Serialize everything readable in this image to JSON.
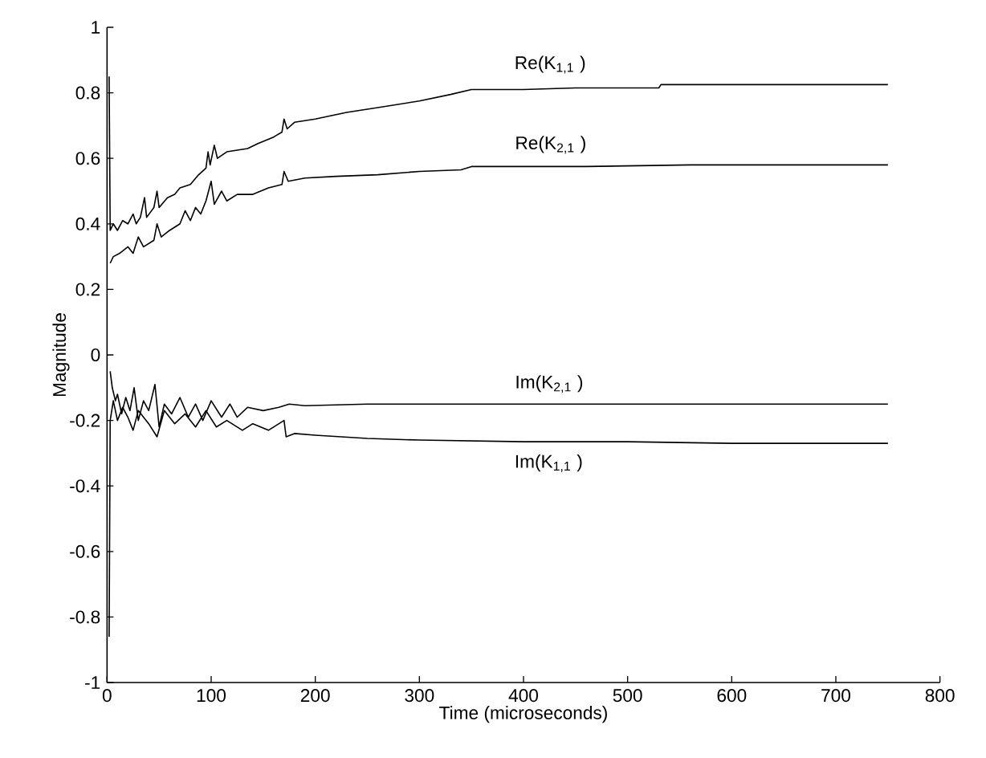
{
  "chart_data": {
    "type": "line",
    "xlabel": "Time (microseconds)",
    "ylabel": "Magnitude",
    "xlim": [
      0,
      800
    ],
    "xticks": [
      0,
      100,
      200,
      300,
      400,
      500,
      600,
      700,
      800
    ],
    "ylim": [
      -1,
      1
    ],
    "yticks": [
      -1,
      -0.8,
      -0.6,
      -0.4,
      -0.2,
      0,
      0.2,
      0.4,
      0.6,
      0.8,
      1
    ],
    "series": [
      {
        "name": "Re(K$_{1,1}$ )",
        "color": "#000000",
        "x": [
          2,
          3,
          6,
          10,
          15,
          20,
          25,
          28,
          32,
          36,
          38,
          45,
          48,
          50,
          58,
          65,
          70,
          80,
          88,
          95,
          97,
          99,
          103,
          106,
          115,
          125,
          135,
          145,
          160,
          168,
          170,
          173,
          180,
          200,
          230,
          260,
          300,
          330,
          350,
          400,
          450,
          530,
          532,
          750
        ],
        "values": [
          0.85,
          0.38,
          0.4,
          0.38,
          0.41,
          0.4,
          0.43,
          0.4,
          0.42,
          0.48,
          0.42,
          0.45,
          0.5,
          0.45,
          0.48,
          0.49,
          0.51,
          0.52,
          0.55,
          0.57,
          0.62,
          0.58,
          0.64,
          0.6,
          0.62,
          0.625,
          0.63,
          0.645,
          0.665,
          0.68,
          0.72,
          0.69,
          0.71,
          0.72,
          0.74,
          0.755,
          0.775,
          0.795,
          0.81,
          0.81,
          0.815,
          0.815,
          0.825,
          0.825
        ]
      },
      {
        "name": "Re(K$_{2,1}$ )",
        "color": "#000000",
        "x": [
          3,
          6,
          12,
          20,
          25,
          30,
          35,
          45,
          48,
          52,
          60,
          70,
          75,
          80,
          85,
          90,
          95,
          100,
          103,
          110,
          115,
          125,
          140,
          155,
          168,
          170,
          174,
          190,
          220,
          260,
          300,
          340,
          350,
          400,
          460,
          560,
          750
        ],
        "values": [
          0.28,
          0.3,
          0.31,
          0.33,
          0.31,
          0.36,
          0.33,
          0.35,
          0.4,
          0.36,
          0.38,
          0.4,
          0.44,
          0.41,
          0.45,
          0.43,
          0.47,
          0.53,
          0.46,
          0.5,
          0.47,
          0.49,
          0.49,
          0.51,
          0.52,
          0.56,
          0.53,
          0.54,
          0.545,
          0.55,
          0.56,
          0.565,
          0.575,
          0.575,
          0.575,
          0.58,
          0.58
        ]
      },
      {
        "name": "Im(K$_{2,1}$ )",
        "color": "#000000",
        "x": [
          3,
          5,
          8,
          10,
          14,
          18,
          22,
          26,
          30,
          35,
          40,
          46,
          50,
          55,
          62,
          70,
          78,
          85,
          92,
          100,
          110,
          118,
          125,
          135,
          150,
          165,
          175,
          190,
          250,
          350,
          750
        ],
        "values": [
          -0.05,
          -0.1,
          -0.14,
          -0.12,
          -0.18,
          -0.13,
          -0.17,
          -0.1,
          -0.2,
          -0.14,
          -0.17,
          -0.09,
          -0.22,
          -0.15,
          -0.18,
          -0.13,
          -0.19,
          -0.15,
          -0.2,
          -0.14,
          -0.19,
          -0.15,
          -0.19,
          -0.16,
          -0.17,
          -0.16,
          -0.15,
          -0.155,
          -0.15,
          -0.15,
          -0.15
        ]
      },
      {
        "name": "Im(K$_{1,1}$ )",
        "color": "#000000",
        "x": [
          2,
          3,
          6,
          10,
          15,
          20,
          25,
          30,
          40,
          48,
          55,
          65,
          75,
          85,
          95,
          105,
          115,
          130,
          140,
          155,
          170,
          172,
          180,
          200,
          250,
          300,
          400,
          500,
          600,
          750
        ],
        "values": [
          -0.86,
          -0.2,
          -0.14,
          -0.2,
          -0.16,
          -0.19,
          -0.23,
          -0.17,
          -0.21,
          -0.25,
          -0.17,
          -0.21,
          -0.18,
          -0.22,
          -0.17,
          -0.22,
          -0.2,
          -0.23,
          -0.21,
          -0.23,
          -0.2,
          -0.25,
          -0.24,
          -0.245,
          -0.255,
          -0.26,
          -0.265,
          -0.265,
          -0.27,
          -0.27
        ]
      }
    ]
  }
}
